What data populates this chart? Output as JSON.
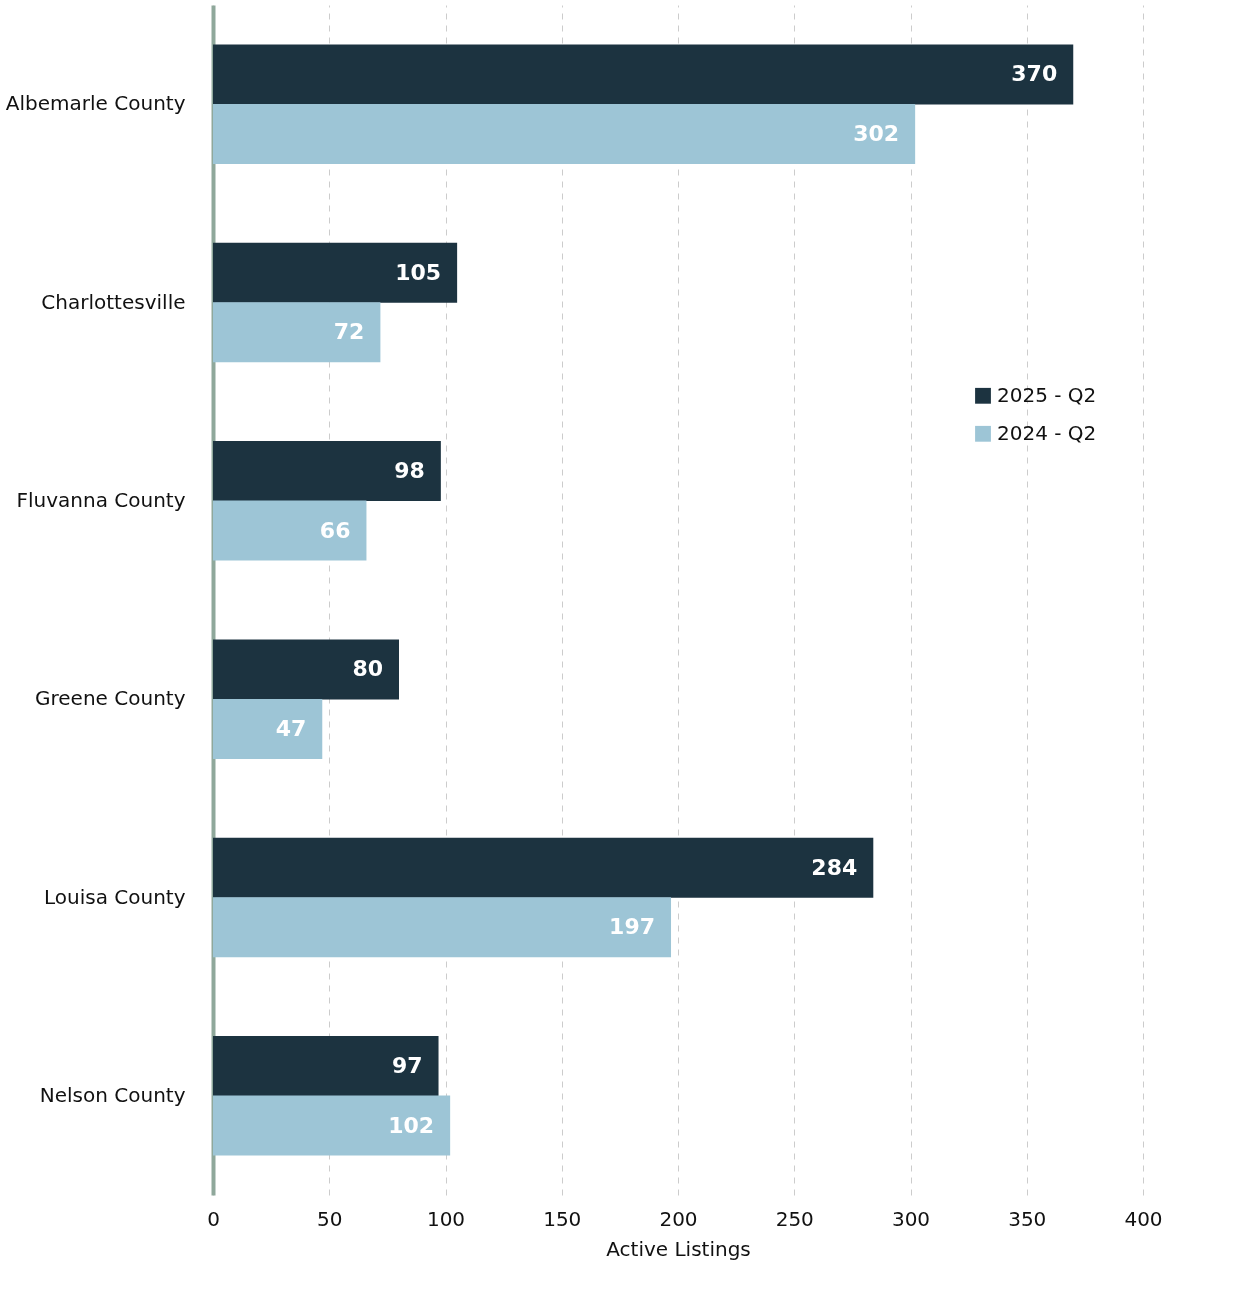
{
  "chart_data": {
    "type": "bar",
    "orientation": "horizontal",
    "xlabel": "Active Listings",
    "categories": [
      "Albemarle County",
      "Charlottesville",
      "Fluvanna County",
      "Greene County",
      "Louisa County",
      "Nelson County"
    ],
    "series": [
      {
        "name": "2025 - Q2",
        "color": "#1c3340",
        "values": [
          370,
          105,
          98,
          80,
          284,
          97
        ]
      },
      {
        "name": "2024 - Q2",
        "color": "#9dc5d6",
        "values": [
          302,
          72,
          66,
          47,
          197,
          102
        ]
      }
    ],
    "xlim": [
      0,
      400
    ],
    "xticks": [
      0,
      50,
      100,
      150,
      200,
      250,
      300,
      350,
      400
    ],
    "grid": "x",
    "legend": "right",
    "data_labels": true
  }
}
